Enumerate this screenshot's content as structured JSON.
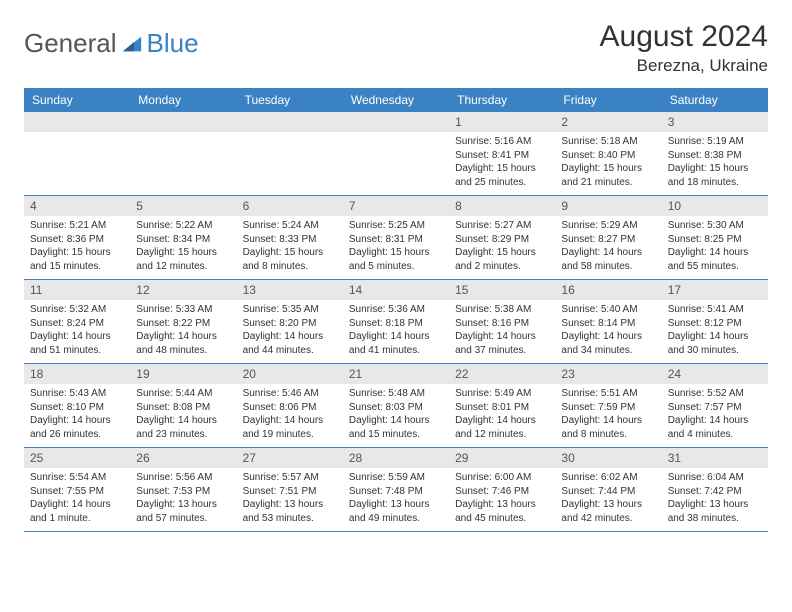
{
  "logo": {
    "text1": "General",
    "text2": "Blue"
  },
  "title": "August 2024",
  "location": "Berezna, Ukraine",
  "colors": {
    "header_bg": "#3b82c4",
    "header_text": "#ffffff",
    "daynum_bg": "#e8e8e8",
    "border": "#3b82c4",
    "page_bg": "#ffffff",
    "text": "#333333"
  },
  "typography": {
    "title_fontsize": 30,
    "location_fontsize": 17,
    "dayheader_fontsize": 12,
    "cell_fontsize": 10
  },
  "day_headers": [
    "Sunday",
    "Monday",
    "Tuesday",
    "Wednesday",
    "Thursday",
    "Friday",
    "Saturday"
  ],
  "weeks": [
    [
      null,
      null,
      null,
      null,
      {
        "n": "1",
        "sunrise": "5:16 AM",
        "sunset": "8:41 PM",
        "daylight": "15 hours and 25 minutes."
      },
      {
        "n": "2",
        "sunrise": "5:18 AM",
        "sunset": "8:40 PM",
        "daylight": "15 hours and 21 minutes."
      },
      {
        "n": "3",
        "sunrise": "5:19 AM",
        "sunset": "8:38 PM",
        "daylight": "15 hours and 18 minutes."
      }
    ],
    [
      {
        "n": "4",
        "sunrise": "5:21 AM",
        "sunset": "8:36 PM",
        "daylight": "15 hours and 15 minutes."
      },
      {
        "n": "5",
        "sunrise": "5:22 AM",
        "sunset": "8:34 PM",
        "daylight": "15 hours and 12 minutes."
      },
      {
        "n": "6",
        "sunrise": "5:24 AM",
        "sunset": "8:33 PM",
        "daylight": "15 hours and 8 minutes."
      },
      {
        "n": "7",
        "sunrise": "5:25 AM",
        "sunset": "8:31 PM",
        "daylight": "15 hours and 5 minutes."
      },
      {
        "n": "8",
        "sunrise": "5:27 AM",
        "sunset": "8:29 PM",
        "daylight": "15 hours and 2 minutes."
      },
      {
        "n": "9",
        "sunrise": "5:29 AM",
        "sunset": "8:27 PM",
        "daylight": "14 hours and 58 minutes."
      },
      {
        "n": "10",
        "sunrise": "5:30 AM",
        "sunset": "8:25 PM",
        "daylight": "14 hours and 55 minutes."
      }
    ],
    [
      {
        "n": "11",
        "sunrise": "5:32 AM",
        "sunset": "8:24 PM",
        "daylight": "14 hours and 51 minutes."
      },
      {
        "n": "12",
        "sunrise": "5:33 AM",
        "sunset": "8:22 PM",
        "daylight": "14 hours and 48 minutes."
      },
      {
        "n": "13",
        "sunrise": "5:35 AM",
        "sunset": "8:20 PM",
        "daylight": "14 hours and 44 minutes."
      },
      {
        "n": "14",
        "sunrise": "5:36 AM",
        "sunset": "8:18 PM",
        "daylight": "14 hours and 41 minutes."
      },
      {
        "n": "15",
        "sunrise": "5:38 AM",
        "sunset": "8:16 PM",
        "daylight": "14 hours and 37 minutes."
      },
      {
        "n": "16",
        "sunrise": "5:40 AM",
        "sunset": "8:14 PM",
        "daylight": "14 hours and 34 minutes."
      },
      {
        "n": "17",
        "sunrise": "5:41 AM",
        "sunset": "8:12 PM",
        "daylight": "14 hours and 30 minutes."
      }
    ],
    [
      {
        "n": "18",
        "sunrise": "5:43 AM",
        "sunset": "8:10 PM",
        "daylight": "14 hours and 26 minutes."
      },
      {
        "n": "19",
        "sunrise": "5:44 AM",
        "sunset": "8:08 PM",
        "daylight": "14 hours and 23 minutes."
      },
      {
        "n": "20",
        "sunrise": "5:46 AM",
        "sunset": "8:06 PM",
        "daylight": "14 hours and 19 minutes."
      },
      {
        "n": "21",
        "sunrise": "5:48 AM",
        "sunset": "8:03 PM",
        "daylight": "14 hours and 15 minutes."
      },
      {
        "n": "22",
        "sunrise": "5:49 AM",
        "sunset": "8:01 PM",
        "daylight": "14 hours and 12 minutes."
      },
      {
        "n": "23",
        "sunrise": "5:51 AM",
        "sunset": "7:59 PM",
        "daylight": "14 hours and 8 minutes."
      },
      {
        "n": "24",
        "sunrise": "5:52 AM",
        "sunset": "7:57 PM",
        "daylight": "14 hours and 4 minutes."
      }
    ],
    [
      {
        "n": "25",
        "sunrise": "5:54 AM",
        "sunset": "7:55 PM",
        "daylight": "14 hours and 1 minute."
      },
      {
        "n": "26",
        "sunrise": "5:56 AM",
        "sunset": "7:53 PM",
        "daylight": "13 hours and 57 minutes."
      },
      {
        "n": "27",
        "sunrise": "5:57 AM",
        "sunset": "7:51 PM",
        "daylight": "13 hours and 53 minutes."
      },
      {
        "n": "28",
        "sunrise": "5:59 AM",
        "sunset": "7:48 PM",
        "daylight": "13 hours and 49 minutes."
      },
      {
        "n": "29",
        "sunrise": "6:00 AM",
        "sunset": "7:46 PM",
        "daylight": "13 hours and 45 minutes."
      },
      {
        "n": "30",
        "sunrise": "6:02 AM",
        "sunset": "7:44 PM",
        "daylight": "13 hours and 42 minutes."
      },
      {
        "n": "31",
        "sunrise": "6:04 AM",
        "sunset": "7:42 PM",
        "daylight": "13 hours and 38 minutes."
      }
    ]
  ],
  "labels": {
    "sunrise": "Sunrise:",
    "sunset": "Sunset:",
    "daylight": "Daylight:"
  }
}
